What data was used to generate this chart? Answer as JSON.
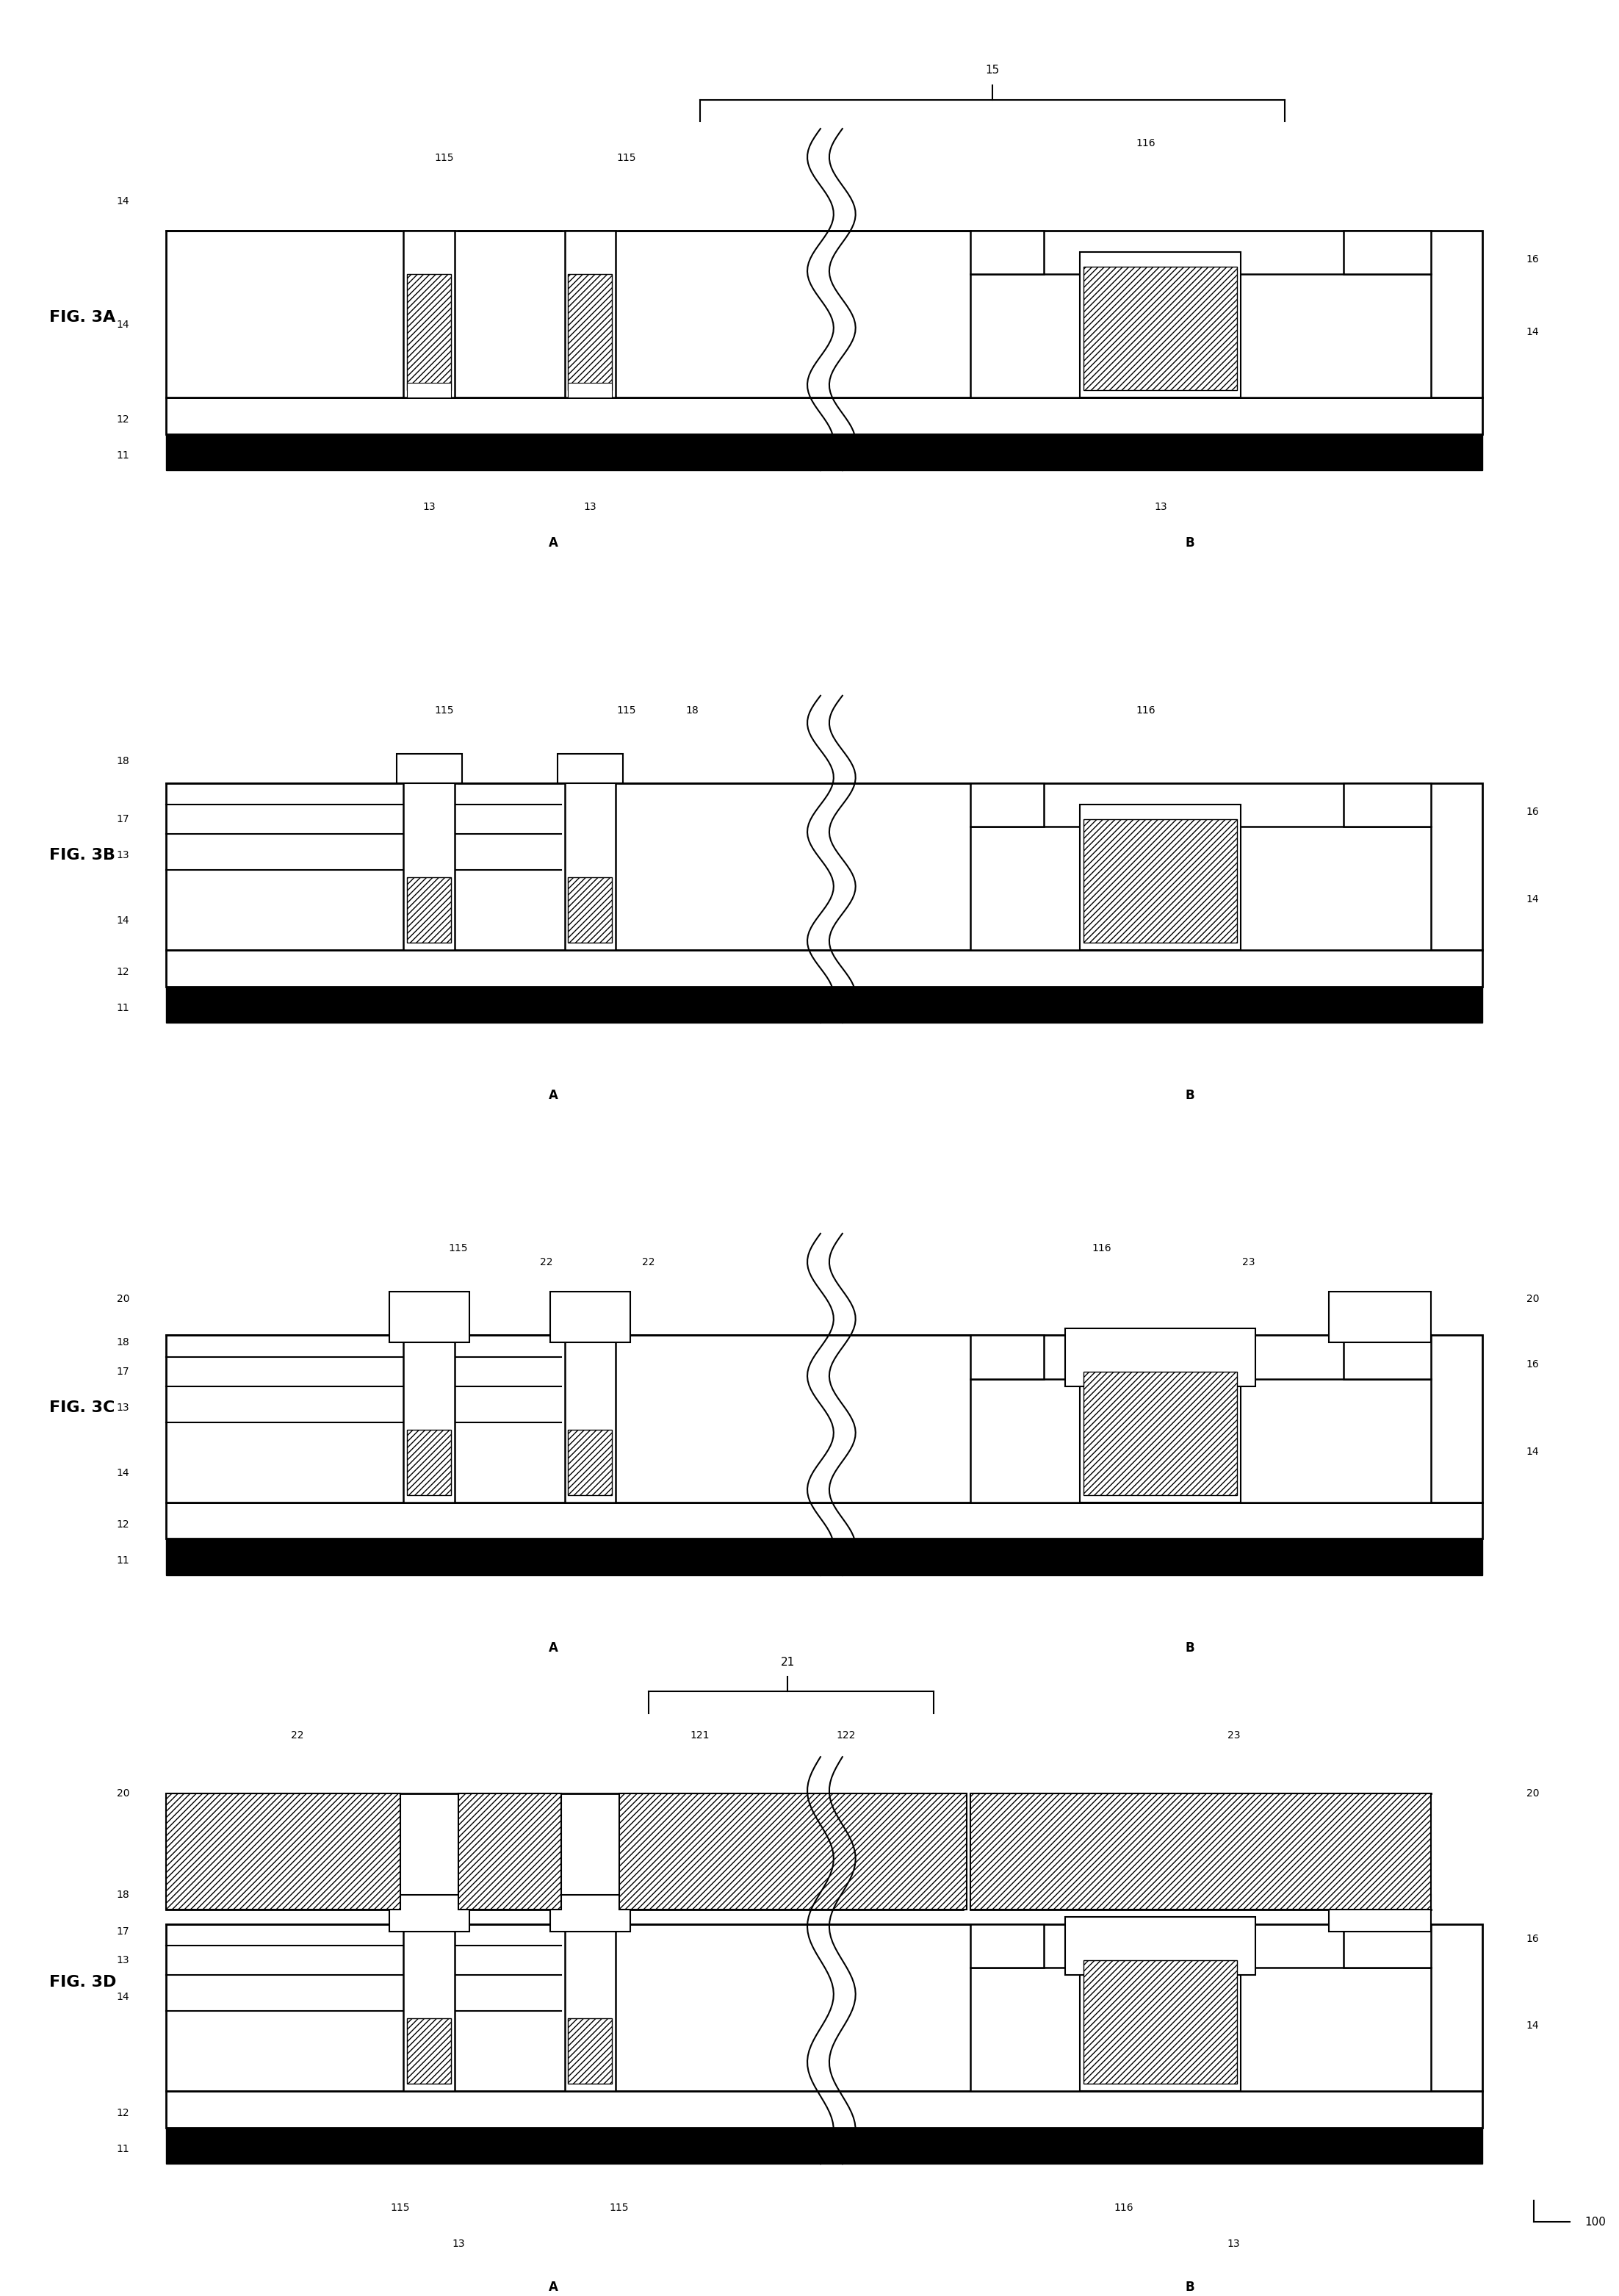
{
  "fig_width": 22.04,
  "fig_height": 31.25,
  "bg_color": "#ffffff",
  "figures": [
    "FIG. 3A",
    "FIG. 3B",
    "FIG. 3C",
    "FIG. 3D"
  ],
  "xlim": [
    0,
    220
  ],
  "ylim": [
    0,
    312
  ]
}
